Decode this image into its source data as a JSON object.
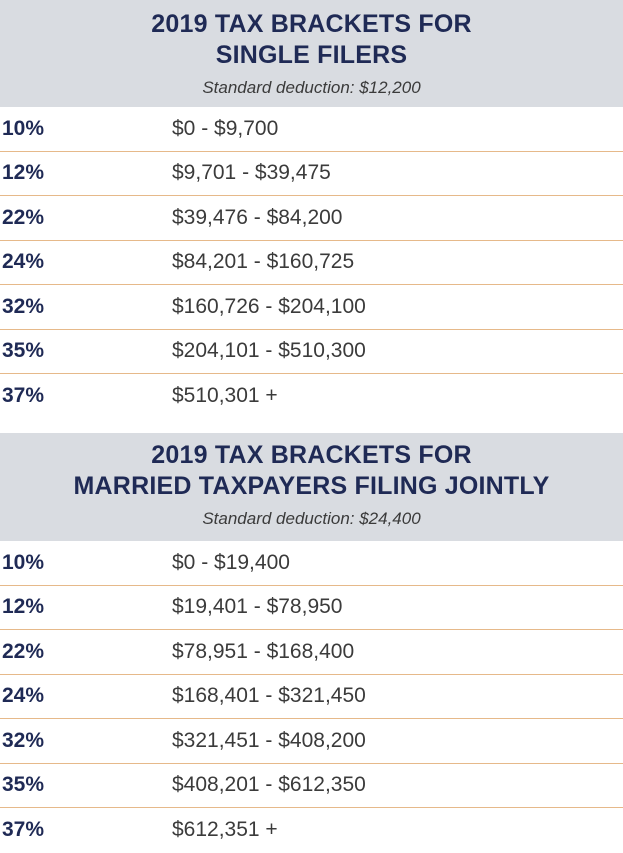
{
  "sections": [
    {
      "title_line1": "2019 TAX BRACKETS FOR",
      "title_line2": "SINGLE FILERS",
      "subtitle": "Standard deduction: $12,200",
      "rows": [
        {
          "rate": "10%",
          "range": "$0 - $9,700"
        },
        {
          "rate": "12%",
          "range": "$9,701 - $39,475"
        },
        {
          "rate": "22%",
          "range": "$39,476 - $84,200"
        },
        {
          "rate": "24%",
          "range": "$84,201 - $160,725"
        },
        {
          "rate": "32%",
          "range": "$160,726 - $204,100"
        },
        {
          "rate": "35%",
          "range": "$204,101 - $510,300"
        },
        {
          "rate": "37%",
          "range": "$510,301 +"
        }
      ]
    },
    {
      "title_line1": "2019 TAX BRACKETS FOR",
      "title_line2": "MARRIED TAXPAYERS FILING JOINTLY",
      "subtitle": "Standard deduction: $24,400",
      "rows": [
        {
          "rate": "10%",
          "range": "$0 - $19,400"
        },
        {
          "rate": "12%",
          "range": "$19,401 - $78,950"
        },
        {
          "rate": "22%",
          "range": "$78,951 - $168,400"
        },
        {
          "rate": "24%",
          "range": "$168,401 - $321,450"
        },
        {
          "rate": "32%",
          "range": "$321,451 - $408,200"
        },
        {
          "rate": "35%",
          "range": "$408,201 - $612,350"
        },
        {
          "rate": "37%",
          "range": "$612,351 +"
        }
      ]
    }
  ],
  "colors": {
    "header_bg": "#d9dce1",
    "title": "#1f2a55",
    "divider": "#e6b98a"
  }
}
